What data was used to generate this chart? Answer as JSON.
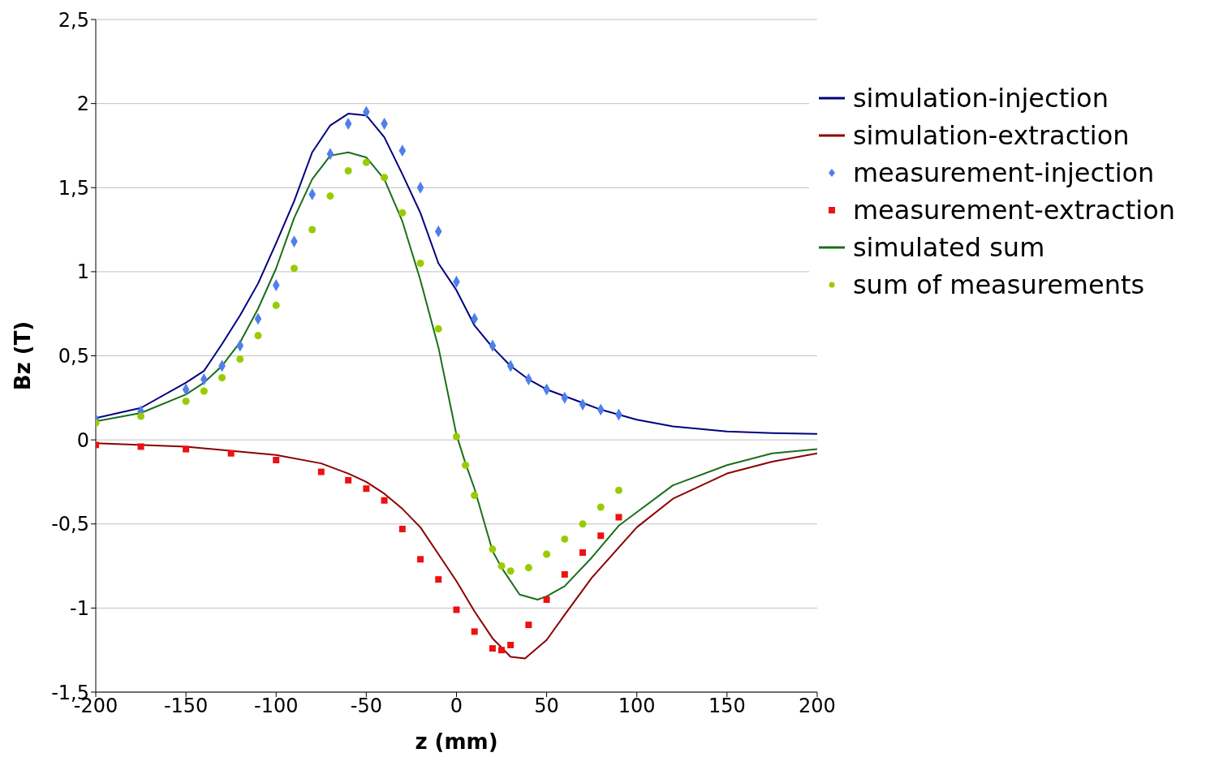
{
  "chart_data": {
    "type": "line",
    "xlabel": "z (mm)",
    "ylabel": "Bz (T)",
    "xlim": [
      -200,
      200
    ],
    "xticks": [
      -200,
      -150,
      -100,
      -50,
      0,
      50,
      100,
      150,
      200
    ],
    "ylim": [
      -1.5,
      2.5
    ],
    "yticks": [
      {
        "value": -1.5,
        "label": "-1,5"
      },
      -1,
      {
        "value": -0.5,
        "label": "-0,5"
      },
      0,
      {
        "value": 0.5,
        "label": "0,5"
      },
      1,
      {
        "value": 1.5,
        "label": "1,5"
      },
      2,
      {
        "value": 2.5,
        "label": "2,5"
      }
    ],
    "grid": "y",
    "legend": "top right",
    "line_style": "solid",
    "series": [
      {
        "name": "simulation-injection",
        "marker": "none",
        "color": "#000080",
        "x": [
          -200,
          -175,
          -150,
          -140,
          -130,
          -120,
          -110,
          -100,
          -90,
          -80,
          -70,
          -60,
          -50,
          -40,
          -30,
          -20,
          -10,
          0,
          10,
          20,
          30,
          40,
          50,
          60,
          70,
          80,
          90,
          100,
          120,
          150,
          175,
          200
        ],
        "values": [
          0.13,
          0.19,
          0.34,
          0.41,
          0.57,
          0.74,
          0.93,
          1.17,
          1.42,
          1.71,
          1.87,
          1.94,
          1.93,
          1.8,
          1.58,
          1.35,
          1.05,
          0.89,
          0.68,
          0.55,
          0.44,
          0.36,
          0.3,
          0.26,
          0.22,
          0.18,
          0.15,
          0.12,
          0.08,
          0.05,
          0.04,
          0.035
        ]
      },
      {
        "name": "simulation-extraction",
        "marker": "none",
        "color": "#8b0000",
        "x": [
          -200,
          -150,
          -100,
          -75,
          -60,
          -50,
          -40,
          -30,
          -20,
          -10,
          0,
          10,
          20,
          30,
          38,
          50,
          60,
          75,
          100,
          120,
          150,
          175,
          200
        ],
        "values": [
          -0.02,
          -0.04,
          -0.09,
          -0.14,
          -0.2,
          -0.25,
          -0.32,
          -0.41,
          -0.52,
          -0.68,
          -0.84,
          -1.02,
          -1.18,
          -1.29,
          -1.3,
          -1.19,
          -1.04,
          -0.82,
          -0.52,
          -0.35,
          -0.2,
          -0.13,
          -0.08
        ]
      },
      {
        "name": "measurement-injection",
        "type": "scatter",
        "marker": "diamond",
        "color": "#4f7fe8",
        "x": [
          -200,
          -175,
          -150,
          -140,
          -130,
          -120,
          -110,
          -100,
          -90,
          -80,
          -70,
          -60,
          -50,
          -40,
          -30,
          -20,
          -10,
          0,
          10,
          20,
          30,
          40,
          50,
          60,
          70,
          80,
          90
        ],
        "values": [
          0.12,
          0.17,
          0.3,
          0.36,
          0.44,
          0.56,
          0.72,
          0.92,
          1.18,
          1.46,
          1.7,
          1.88,
          1.95,
          1.88,
          1.72,
          1.5,
          1.24,
          0.94,
          0.72,
          0.56,
          0.44,
          0.36,
          0.3,
          0.25,
          0.21,
          0.18,
          0.15
        ]
      },
      {
        "name": "measurement-extraction",
        "type": "scatter",
        "marker": "square",
        "color": "#ee1111",
        "x": [
          -200,
          -175,
          -150,
          -125,
          -100,
          -75,
          -60,
          -50,
          -40,
          -30,
          -20,
          -10,
          0,
          10,
          20,
          25,
          30,
          40,
          50,
          60,
          70,
          80,
          90
        ],
        "values": [
          -0.03,
          -0.04,
          -0.055,
          -0.08,
          -0.12,
          -0.19,
          -0.24,
          -0.29,
          -0.36,
          -0.53,
          -0.71,
          -0.83,
          -1.01,
          -1.14,
          -1.24,
          -1.25,
          -1.22,
          -1.1,
          -0.95,
          -0.8,
          -0.67,
          -0.57,
          -0.46
        ]
      },
      {
        "name": "simulated sum",
        "marker": "none",
        "color": "#1a6e1a",
        "x": [
          -200,
          -175,
          -150,
          -140,
          -130,
          -120,
          -110,
          -100,
          -90,
          -80,
          -70,
          -60,
          -50,
          -40,
          -30,
          -20,
          -10,
          0,
          5,
          10,
          20,
          25,
          35,
          45,
          50,
          60,
          75,
          90,
          100,
          120,
          150,
          175,
          200
        ],
        "values": [
          0.11,
          0.16,
          0.27,
          0.34,
          0.44,
          0.58,
          0.78,
          1.02,
          1.32,
          1.55,
          1.69,
          1.71,
          1.68,
          1.55,
          1.3,
          0.95,
          0.55,
          0.03,
          -0.14,
          -0.29,
          -0.66,
          -0.76,
          -0.92,
          -0.95,
          -0.93,
          -0.87,
          -0.7,
          -0.51,
          -0.43,
          -0.27,
          -0.15,
          -0.08,
          -0.055
        ]
      },
      {
        "name": "sum of measurements",
        "type": "scatter",
        "marker": "circle",
        "color": "#99cc00",
        "x": [
          -200,
          -175,
          -150,
          -140,
          -130,
          -120,
          -110,
          -100,
          -90,
          -80,
          -70,
          -60,
          -50,
          -40,
          -30,
          -20,
          -10,
          0,
          5,
          10,
          20,
          25,
          30,
          40,
          50,
          60,
          70,
          80,
          90
        ],
        "values": [
          0.1,
          0.14,
          0.23,
          0.29,
          0.37,
          0.48,
          0.62,
          0.8,
          1.02,
          1.25,
          1.45,
          1.6,
          1.65,
          1.56,
          1.35,
          1.05,
          0.66,
          0.02,
          -0.15,
          -0.33,
          -0.65,
          -0.75,
          -0.78,
          -0.76,
          -0.68,
          -0.59,
          -0.5,
          -0.4,
          -0.3
        ]
      }
    ]
  }
}
